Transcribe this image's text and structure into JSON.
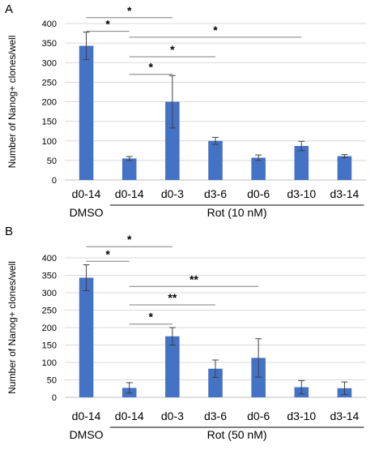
{
  "colors": {
    "bar": "#4472C4",
    "axis": "#bfbfbf",
    "grid": "#d9d9d9",
    "text": "#000000",
    "sigline": "#7f7f7f",
    "errbar": "#404040"
  },
  "chart_data": [
    {
      "type": "bar",
      "panel_label": "A",
      "ylabel": "Number of Nanog+ clones/well",
      "ylim": [
        0,
        400
      ],
      "yticks": [
        0,
        50,
        100,
        150,
        200,
        250,
        300,
        350,
        400
      ],
      "grid": true,
      "categories": [
        "d0-14",
        "d0-14",
        "d0-3",
        "d3-6",
        "d0-6",
        "d3-10",
        "d3-14"
      ],
      "values": [
        343,
        55,
        200,
        100,
        57,
        87,
        61
      ],
      "errors": [
        35,
        5,
        67,
        9,
        7,
        12,
        4
      ],
      "group_labels": [
        {
          "text": "DMSO",
          "from": 0,
          "to": 0
        },
        {
          "text": "Rot (10 nM)",
          "from": 1,
          "to": 6
        }
      ],
      "significance": [
        {
          "from": 0,
          "to": 2,
          "label": "*",
          "y": 415
        },
        {
          "from": 0,
          "to": 1,
          "label": "*",
          "y": 380
        },
        {
          "from": 1,
          "to": 5,
          "label": "*",
          "y": 365
        },
        {
          "from": 1,
          "to": 3,
          "label": "*",
          "y": 315
        },
        {
          "from": 1,
          "to": 2,
          "label": "*",
          "y": 270
        }
      ]
    },
    {
      "type": "bar",
      "panel_label": "B",
      "ylabel": "Number of Nanog+ clones/well",
      "ylim": [
        0,
        400
      ],
      "yticks": [
        0,
        50,
        100,
        150,
        200,
        250,
        300,
        350,
        400
      ],
      "grid": true,
      "categories": [
        "d0-14",
        "d0-14",
        "d0-3",
        "d3-6",
        "d0-6",
        "d3-10",
        "d3-14"
      ],
      "values": [
        343,
        27,
        175,
        82,
        113,
        29,
        26
      ],
      "errors": [
        37,
        15,
        25,
        25,
        55,
        19,
        18
      ],
      "group_labels": [
        {
          "text": "DMSO",
          "from": 0,
          "to": 0
        },
        {
          "text": "Rot (50 nM)",
          "from": 1,
          "to": 6
        }
      ],
      "significance": [
        {
          "from": 0,
          "to": 2,
          "label": "*",
          "y": 432
        },
        {
          "from": 0,
          "to": 1,
          "label": "*",
          "y": 390
        },
        {
          "from": 1,
          "to": 4,
          "label": "**",
          "y": 318
        },
        {
          "from": 1,
          "to": 3,
          "label": "**",
          "y": 265
        },
        {
          "from": 1,
          "to": 2,
          "label": "*",
          "y": 210
        }
      ]
    }
  ]
}
